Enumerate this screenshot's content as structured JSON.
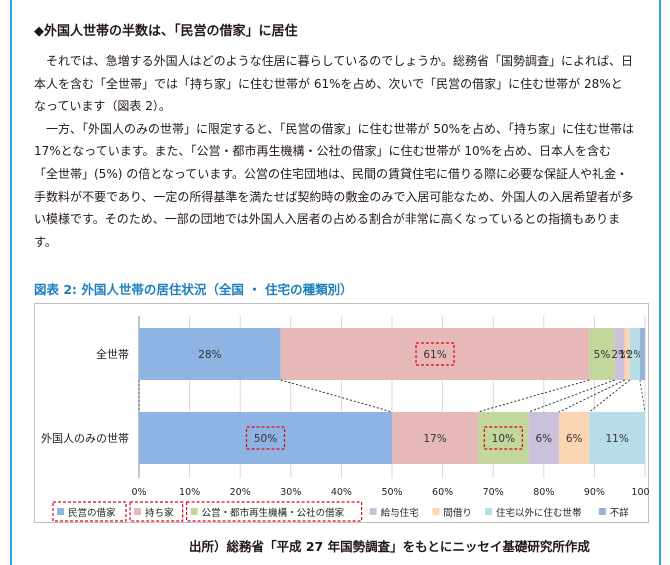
{
  "section": {
    "heading": "◆外国人世帯の半数は、「民営の借家」に居住"
  },
  "paragraphs": [
    "それでは、急増する外国人はどのような住居に暮らしているのでしょうか。総務省「国勢調査」によれば、日本人を含む「全世帯」では「持ち家」に住む世帯が 61%を占め、次いで「民営の借家」に住む世帯が 28%となっています（図表 2）。",
    "一方、「外国人のみの世帯」に限定すると、「民営の借家」に住む世帯が 50%を占め、「持ち家」に住む世帯は 17%となっています。また、「公営・都市再生機構・公社の借家」に住む世帯が 10%を占め、日本人を含む「全世帯」(5%) の倍となっています。公営の住宅団地は、民間の賃貸住宅に借りる際に必要な保証人や礼金・手数料が不要であり、一定の所得基準を満たせば契約時の敷金のみで入居可能なため、外国人の入居希望者が多い模様です。そのため、一部の団地では外国人入居者の占める割合が非常に高くなっているとの指摘もあります。"
  ],
  "figure": {
    "caption": "図表 2: 外国人世帯の居住状況（全国 ・ 住宅の種類別）",
    "source": "出所）総務省「平成 27 年国勢調査」をもとにニッセイ基礎研究所作成"
  },
  "chart_data": {
    "type": "bar",
    "orientation": "horizontal",
    "stacked": true,
    "categories": [
      "全世帯",
      "外国人のみの世帯"
    ],
    "series": [
      {
        "name": "民営の借家",
        "values": [
          28,
          50
        ],
        "color": "#8eb4e3",
        "labels": [
          "28%",
          "50%"
        ]
      },
      {
        "name": "持ち家",
        "values": [
          61,
          17
        ],
        "color": "#e6b9b8",
        "labels": [
          "61%",
          "17%"
        ]
      },
      {
        "name": "公営・都市再生機構・公社の借家",
        "values": [
          5,
          10
        ],
        "color": "#c3d69b",
        "labels": [
          "5%",
          "10%"
        ]
      },
      {
        "name": "給与住宅",
        "values": [
          2,
          6
        ],
        "color": "#ccc1da",
        "labels": [
          "2%",
          "6%"
        ]
      },
      {
        "name": "間借り",
        "values": [
          1,
          6
        ],
        "color": "#fcd5b5",
        "labels": [
          "1%",
          "6%"
        ]
      },
      {
        "name": "住宅以外に住む世帯",
        "values": [
          2,
          11
        ],
        "color": "#b7dee8",
        "labels": [
          "2%",
          "11%"
        ]
      },
      {
        "name": "不詳",
        "values": [
          1,
          0
        ],
        "color": "#95b3d7",
        "labels": [
          "",
          ""
        ]
      }
    ],
    "xlim": [
      0,
      100
    ],
    "xticks": [
      "0%",
      "10%",
      "20%",
      "30%",
      "40%",
      "50%",
      "60%",
      "70%",
      "80%",
      "90%",
      "100%"
    ],
    "grid": true,
    "legend_position": "bottom",
    "highlights": [
      {
        "category": "全世帯",
        "series": "持ち家"
      },
      {
        "category": "外国人のみの世帯",
        "series": "民営の借家"
      },
      {
        "category": "外国人のみの世帯",
        "series": "公営・都市再生機構・公社の借家"
      }
    ],
    "highlighted_legend": [
      "民営の借家",
      "持ち家",
      "公営・都市再生機構・公社の借家"
    ]
  }
}
